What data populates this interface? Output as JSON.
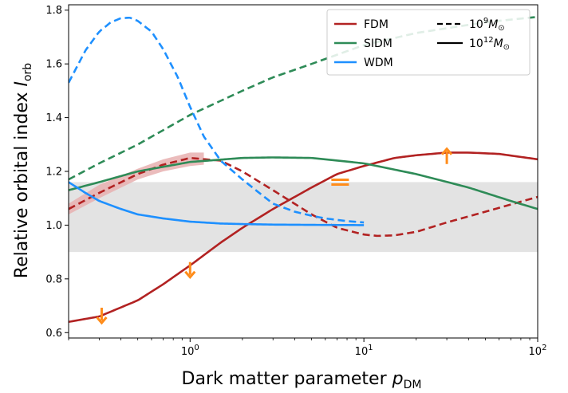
{
  "chart_data": {
    "type": "line",
    "xscale": "log",
    "xlim": [
      0.2,
      100
    ],
    "ylim": [
      0.58,
      1.82
    ],
    "grid": false,
    "legend_position": "top-right",
    "xlabel": {
      "main": "Dark matter parameter ",
      "sub": "DM",
      "var": "p"
    },
    "ylabel": {
      "main": "Relative orbital index ",
      "sub": "orb",
      "var": "I"
    },
    "x_ticks": [
      {
        "value": 1,
        "base": "10",
        "exp": "0"
      },
      {
        "value": 10,
        "base": "10",
        "exp": "1"
      },
      {
        "value": 100,
        "base": "10",
        "exp": "2"
      }
    ],
    "y_ticks": [
      "0.6",
      "0.8",
      "1.0",
      "1.2",
      "1.4",
      "1.6",
      "1.8"
    ],
    "band": {
      "y0": 0.9,
      "y1": 1.16,
      "color": "#e3e3e3"
    },
    "colors": {
      "FDM": "#b22222",
      "SIDM": "#2e8b57",
      "WDM": "#1e90ff",
      "marker": "#ff8c1a",
      "shade": "#e8b0b0"
    },
    "legend": {
      "models": [
        "FDM",
        "SIDM",
        "WDM"
      ],
      "styles": [
        {
          "label_base": "10",
          "label_exp": "9",
          "label_unit": "M",
          "dash": true
        },
        {
          "label_base": "10",
          "label_exp": "12",
          "label_unit": "M",
          "dash": false
        }
      ]
    },
    "series": [
      {
        "name": "FDM",
        "halo": "10^12",
        "dashed": false,
        "x": [
          0.2,
          0.3,
          0.5,
          0.7,
          1,
          1.5,
          2,
          3,
          5,
          7,
          10,
          15,
          20,
          30,
          40,
          60,
          100
        ],
        "y": [
          0.64,
          0.66,
          0.72,
          0.78,
          0.85,
          0.935,
          0.99,
          1.06,
          1.14,
          1.19,
          1.22,
          1.25,
          1.26,
          1.27,
          1.27,
          1.265,
          1.245
        ]
      },
      {
        "name": "FDM",
        "halo": "10^9",
        "dashed": true,
        "x": [
          0.2,
          0.3,
          0.5,
          0.7,
          1,
          1.5,
          2,
          3,
          5,
          7,
          10,
          12,
          15,
          20,
          30,
          50,
          100
        ],
        "y": [
          1.06,
          1.12,
          1.19,
          1.225,
          1.25,
          1.24,
          1.2,
          1.13,
          1.04,
          0.99,
          0.965,
          0.96,
          0.962,
          0.975,
          1.01,
          1.05,
          1.105
        ]
      },
      {
        "name": "SIDM",
        "halo": "10^12",
        "dashed": false,
        "x": [
          0.2,
          0.3,
          0.5,
          1,
          2,
          3,
          5,
          10,
          20,
          40,
          70,
          100
        ],
        "y": [
          1.13,
          1.16,
          1.2,
          1.235,
          1.25,
          1.252,
          1.25,
          1.23,
          1.19,
          1.14,
          1.09,
          1.06
        ]
      },
      {
        "name": "SIDM",
        "halo": "10^9",
        "dashed": true,
        "x": [
          0.2,
          0.3,
          0.5,
          1,
          2,
          3,
          5,
          10,
          20,
          50,
          100
        ],
        "y": [
          1.17,
          1.23,
          1.3,
          1.41,
          1.5,
          1.55,
          1.6,
          1.67,
          1.715,
          1.755,
          1.775
        ]
      },
      {
        "name": "WDM",
        "halo": "10^12",
        "dashed": false,
        "x": [
          0.2,
          0.25,
          0.3,
          0.4,
          0.5,
          0.7,
          1,
          1.5,
          2,
          3,
          5,
          10
        ],
        "y": [
          1.16,
          1.12,
          1.09,
          1.06,
          1.04,
          1.025,
          1.013,
          1.006,
          1.004,
          1.002,
          1.001,
          1.0
        ]
      },
      {
        "name": "WDM",
        "halo": "10^9",
        "dashed": true,
        "x": [
          0.2,
          0.25,
          0.3,
          0.35,
          0.4,
          0.45,
          0.5,
          0.6,
          0.7,
          0.85,
          1,
          1.2,
          1.5,
          2,
          2.5,
          3,
          4,
          5,
          6,
          8,
          10
        ],
        "y": [
          1.53,
          1.65,
          1.72,
          1.755,
          1.77,
          1.772,
          1.76,
          1.72,
          1.655,
          1.55,
          1.44,
          1.33,
          1.24,
          1.17,
          1.12,
          1.08,
          1.05,
          1.035,
          1.025,
          1.015,
          1.01
        ]
      }
    ],
    "shaded_band": {
      "name": "FDM",
      "x": [
        0.2,
        0.3,
        0.5,
        0.7,
        1,
        1.2
      ],
      "lower": [
        1.04,
        1.1,
        1.17,
        1.2,
        1.22,
        1.225
      ],
      "upper": [
        1.08,
        1.15,
        1.21,
        1.245,
        1.27,
        1.27
      ]
    },
    "markers": [
      {
        "type": "arrow-down",
        "x": 0.31,
        "y": 0.66
      },
      {
        "type": "arrow-down",
        "x": 1.0,
        "y": 0.83
      },
      {
        "type": "arrow-up",
        "x": 30,
        "y": 1.26
      },
      {
        "type": "bar",
        "x": 7.3,
        "y": 1.16
      }
    ]
  }
}
